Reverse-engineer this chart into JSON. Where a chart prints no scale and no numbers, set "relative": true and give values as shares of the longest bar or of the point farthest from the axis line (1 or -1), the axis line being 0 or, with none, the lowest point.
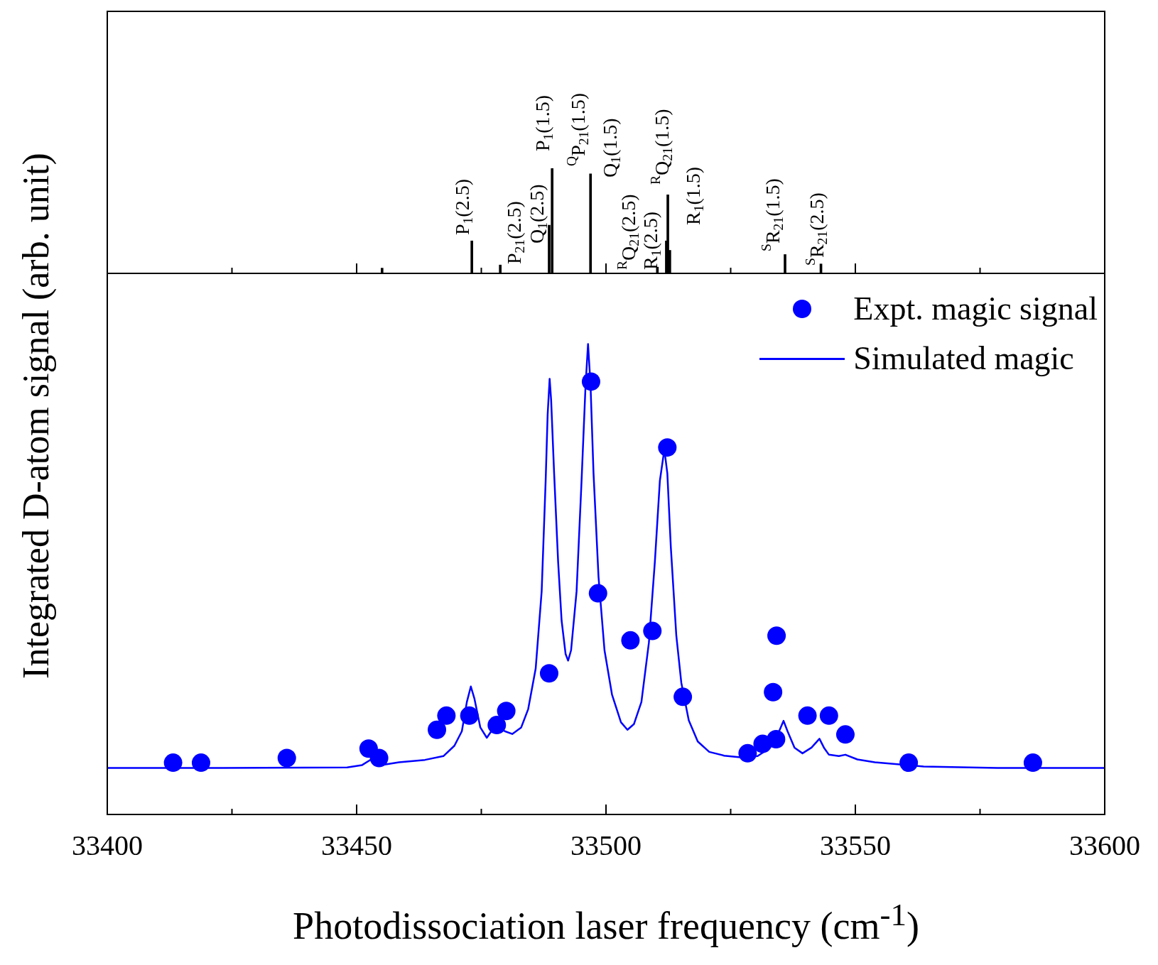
{
  "chart_data": [
    {
      "type": "bar",
      "relative": true,
      "color": "#000000",
      "x": [
        33455.1,
        33473.1,
        33478.8,
        33488.6,
        33489.2,
        33496.9,
        33510.3,
        33512.1,
        33512.4,
        33512.8,
        33535.9,
        33543.1
      ],
      "values": [
        0.05,
        0.31,
        0.08,
        0.46,
        1,
        0.95,
        0.06,
        0.31,
        0.75,
        0.22,
        0.18,
        0.09
      ],
      "xlim": [
        33400,
        33600
      ],
      "xticks": [
        33400,
        {
          "value": 33425,
          "label": null
        },
        33450,
        {
          "value": 33475,
          "label": null
        },
        33500,
        {
          "value": 33525,
          "label": null
        },
        33550,
        {
          "value": 33575,
          "label": null
        },
        33600
      ],
      "tick_labels": false,
      "grid": false,
      "legend": false,
      "annotations": [
        "P$_{1}$(2.5)",
        "P$_{21}$(2.5)",
        "Q$_{1}$(2.5)",
        "P$_{1}$(1.5)",
        "$^{Q}$P$_{21}$(1.5)",
        "Q$_{1}$(1.5)",
        "$^{R}$Q$_{21}$(2.5)",
        "R$_{1}$(2.5)",
        "$^{R}$Q$_{21}$(1.5)",
        "R$_{1}$(1.5)",
        "$^{S}$R$_{21}$(1.5)",
        "$^{S}$R$_{21}$(2.5)"
      ]
    },
    {
      "type": "scatter",
      "relative": true,
      "xlabel": "Photodissociation laser frequency (cm$^{-1}$)",
      "ylabel": "Integrated D-atom signal (arb. unit)",
      "xlim": [
        33400,
        33600
      ],
      "xticks": [
        33400,
        {
          "value": 33425,
          "label": null
        },
        33450,
        {
          "value": 33475,
          "label": null
        },
        33500,
        {
          "value": 33525,
          "label": null
        },
        33550,
        {
          "value": 33575,
          "label": null
        },
        33600
      ],
      "grid": false,
      "legend": "top right",
      "marker": "circle",
      "series": [
        {
          "name": "Expt. magic signal",
          "color": "#0000ff",
          "x": [
            33413.2,
            33418.8,
            33436.0,
            33452.4,
            33454.5,
            33466.1,
            33468.0,
            33472.6,
            33478.1,
            33480.0,
            33488.6,
            33497.0,
            33498.4,
            33504.9,
            33509.3,
            33512.3,
            33515.4,
            33528.4,
            33531.4,
            33534.1,
            33533.5,
            33534.2,
            33540.4,
            33544.7,
            33548.0,
            33560.7,
            33585.6
          ],
          "values": [
            0.11,
            0.11,
            0.12,
            0.14,
            0.12,
            0.18,
            0.21,
            0.21,
            0.19,
            0.22,
            0.3,
            0.92,
            0.47,
            0.37,
            0.39,
            0.78,
            0.25,
            0.13,
            0.15,
            0.16,
            0.26,
            0.38,
            0.21,
            0.21,
            0.17,
            0.11,
            0.11
          ]
        },
        {
          "name": "Simulated magic",
          "type": "line",
          "color": "#0000ff",
          "marker": "none",
          "line_style": "solid",
          "x": [
            33400,
            33423.0,
            33448.1,
            33451.1,
            33452.9,
            33454.1,
            33455.6,
            33458.5,
            33463.7,
            33467.4,
            33469.6,
            33471.1,
            33472.1,
            33472.9,
            33473.6,
            33474.8,
            33476.1,
            33477.2,
            33478.5,
            33479.7,
            33481.2,
            33483.0,
            33484.4,
            33485.9,
            33487.1,
            33487.9,
            33488.3,
            33488.7,
            33489.0,
            33489.6,
            33490.4,
            33491.1,
            33491.9,
            33492.4,
            33493.0,
            33494.1,
            33495.1,
            33495.9,
            33496.4,
            33496.9,
            33497.5,
            33498.5,
            33499.7,
            33501.2,
            33503.0,
            33504.3,
            33505.6,
            33507.1,
            33508.6,
            33509.8,
            33510.8,
            33511.7,
            33512.3,
            33513.0,
            33514.1,
            33515.1,
            33516.6,
            33518.4,
            33520.7,
            33523.7,
            33527.3,
            33530.4,
            33532.9,
            33534.4,
            33535.6,
            33536.4,
            33537.8,
            33539.4,
            33541.2,
            33542.8,
            33543.7,
            33544.7,
            33546.7,
            33548.0,
            33550.4,
            33553.9,
            33563.7,
            33578.5,
            33600
          ],
          "values": [
            0.099,
            0.099,
            0.1,
            0.105,
            0.117,
            0.111,
            0.106,
            0.111,
            0.116,
            0.124,
            0.146,
            0.177,
            0.239,
            0.272,
            0.247,
            0.185,
            0.163,
            0.18,
            0.185,
            0.177,
            0.171,
            0.185,
            0.224,
            0.31,
            0.474,
            0.709,
            0.85,
            0.926,
            0.881,
            0.725,
            0.537,
            0.412,
            0.341,
            0.327,
            0.349,
            0.474,
            0.709,
            0.912,
            1.0,
            0.912,
            0.725,
            0.505,
            0.349,
            0.255,
            0.196,
            0.18,
            0.192,
            0.239,
            0.365,
            0.537,
            0.709,
            0.776,
            0.725,
            0.568,
            0.38,
            0.28,
            0.2,
            0.155,
            0.133,
            0.125,
            0.121,
            0.124,
            0.142,
            0.169,
            0.199,
            0.177,
            0.142,
            0.13,
            0.142,
            0.161,
            0.142,
            0.127,
            0.124,
            0.127,
            0.117,
            0.111,
            0.102,
            0.099,
            0.099
          ]
        }
      ]
    }
  ]
}
